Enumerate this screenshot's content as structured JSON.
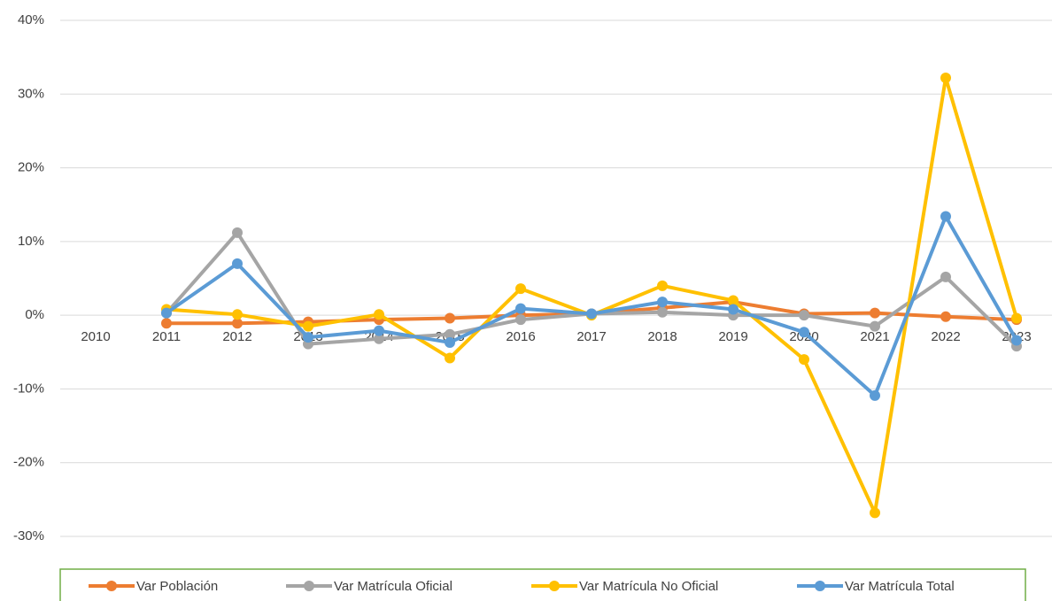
{
  "chart_data": {
    "type": "line",
    "categories": [
      "2010",
      "2011",
      "2012",
      "2013",
      "2014",
      "2015",
      "2016",
      "2017",
      "2018",
      "2019",
      "2020",
      "2021",
      "2022",
      "2023"
    ],
    "series": [
      {
        "name": "Var Población",
        "color": "#ed7d31",
        "values": [
          null,
          -1.1,
          -1.1,
          -0.9,
          -0.6,
          -0.4,
          0,
          0.2,
          1.0,
          1.8,
          0.2,
          0.3,
          -0.2,
          -0.6
        ]
      },
      {
        "name": "Var Matrícula Oficial",
        "color": "#a5a5a5",
        "values": [
          null,
          0.3,
          11.2,
          -3.9,
          -3.2,
          -2.6,
          -0.6,
          0.2,
          0.4,
          0,
          0,
          -1.5,
          5.2,
          -4.2
        ]
      },
      {
        "name": "Var Matrícula No Oficial",
        "color": "#ffc000",
        "values": [
          null,
          0.8,
          0.1,
          -1.5,
          0.1,
          -5.8,
          3.6,
          0,
          4.0,
          2.0,
          -6.0,
          -26.8,
          32.2,
          -0.4
        ]
      },
      {
        "name": "Var Matrícula Total",
        "color": "#5b9bd5",
        "values": [
          null,
          0.3,
          7.0,
          -3.0,
          -2.1,
          -3.7,
          0.9,
          0.2,
          1.8,
          0.8,
          -2.3,
          -10.9,
          13.4,
          -3.4
        ]
      }
    ],
    "ylim": [
      -30,
      40
    ],
    "yticks": [
      {
        "value": -30,
        "label": "-30%"
      },
      {
        "value": -20,
        "label": "-20%"
      },
      {
        "value": -10,
        "label": "-10%"
      },
      {
        "value": 0,
        "label": "0%"
      },
      {
        "value": 10,
        "label": "10%"
      },
      {
        "value": 20,
        "label": "20%"
      },
      {
        "value": 30,
        "label": "30%"
      },
      {
        "value": 40,
        "label": "40%"
      }
    ],
    "grid": true
  }
}
